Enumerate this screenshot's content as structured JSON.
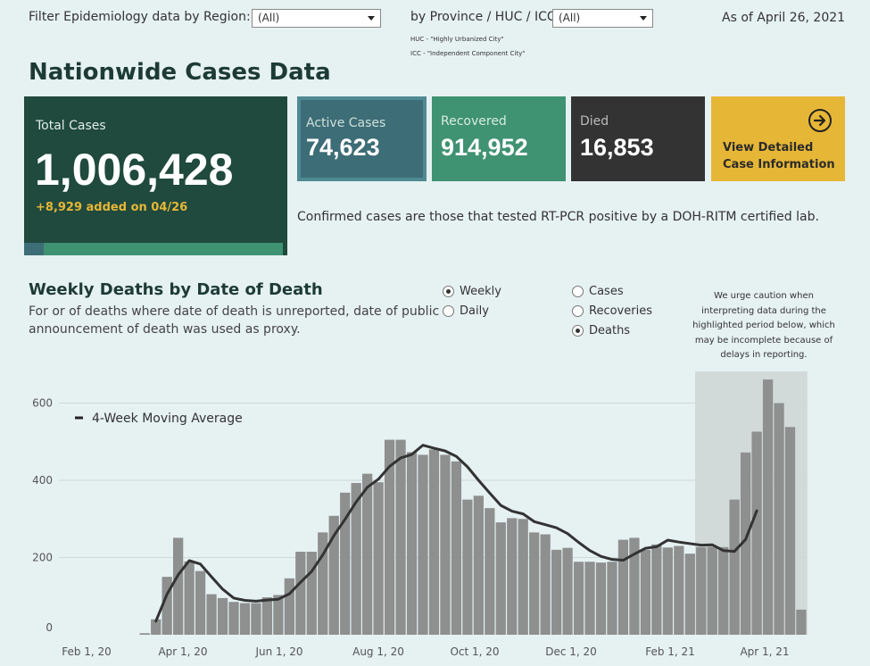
{
  "filters": {
    "region_label": "Filter Epidemiology data by Region:",
    "region_value": "(All)",
    "province_label": "by Province / HUC / ICC:",
    "province_value": "(All)",
    "huc_note": "HUC - \"Highly Urbanized City\"",
    "icc_note": "ICC - \"Independent Component City\""
  },
  "as_of": "As of April 26, 2021",
  "section_title": "Nationwide Cases Data",
  "total": {
    "label": "Total Cases",
    "value": "1,006,428",
    "added": "+8,929 added on 04/26"
  },
  "active": {
    "label": "Active Cases",
    "value": "74,623"
  },
  "recovered": {
    "label": "Recovered",
    "value": "914,952"
  },
  "died": {
    "label": "Died",
    "value": "16,853"
  },
  "detail": {
    "line1": "View Detailed",
    "line2": "Case Information"
  },
  "confirmed_note": "Confirmed cases are those that tested RT-PCR positive by a DOH-RITM certified lab.",
  "chart_title": "Weekly Deaths by Date of Death",
  "chart_sub1": "For  or  of deaths where date of death is unreported, date of public",
  "chart_sub2": "announcement of death was used as proxy.",
  "period_options": [
    {
      "label": "Weekly",
      "selected": true
    },
    {
      "label": "Daily",
      "selected": false
    }
  ],
  "metric_options": [
    {
      "label": "Cases",
      "selected": false
    },
    {
      "label": "Recoveries",
      "selected": false
    },
    {
      "label": "Deaths",
      "selected": true
    }
  ],
  "caution": [
    "We urge caution when",
    "interpreting data during the",
    "highlighted period below, which",
    "may be incomplete because of",
    "delays in reporting."
  ],
  "colors": {
    "dark_green": "#1f4a3d",
    "teal": "#3d6d76",
    "green": "#3f9272",
    "dark": "#333333",
    "gold": "#e6b636",
    "bar": "#8e8f8f",
    "line": "#333333"
  },
  "chart_data": {
    "type": "bar",
    "legend": "4-Week Moving Average",
    "x_start": "2020-03-01",
    "x_ticks": [
      "Feb 1, 20",
      "Apr 1, 20",
      "Jun 1, 20",
      "Aug 1, 20",
      "Oct 1, 20",
      "Dec 1, 20",
      "Feb 1, 21",
      "Apr 1, 21"
    ],
    "y_ticks": [
      0,
      200,
      400,
      600
    ],
    "ylim": [
      0,
      650
    ],
    "highlight_last_weeks": 10,
    "weekly_deaths": [
      4,
      40,
      150,
      251,
      190,
      165,
      105,
      95,
      85,
      82,
      82,
      97,
      103,
      146,
      215,
      215,
      265,
      308,
      368,
      393,
      417,
      395,
      505,
      505,
      473,
      466,
      480,
      466,
      449,
      350,
      360,
      328,
      291,
      302,
      300,
      265,
      260,
      220,
      225,
      189,
      189,
      187,
      189,
      246,
      251,
      220,
      234,
      226,
      230,
      210,
      227,
      228,
      227,
      350,
      472,
      526,
      661,
      600,
      538,
      65
    ],
    "moving_average": [
      null,
      35,
      105,
      155,
      192,
      183,
      150,
      118,
      95,
      89,
      87,
      90,
      92,
      106,
      136,
      164,
      207,
      257,
      299,
      344,
      382,
      403,
      436,
      458,
      467,
      491,
      483,
      476,
      462,
      435,
      400,
      367,
      335,
      320,
      313,
      293,
      285,
      277,
      262,
      239,
      218,
      203,
      195,
      193,
      209,
      224,
      228,
      245,
      240,
      236,
      232,
      233,
      218,
      216,
      247,
      321,
      null,
      null,
      null,
      null
    ]
  }
}
